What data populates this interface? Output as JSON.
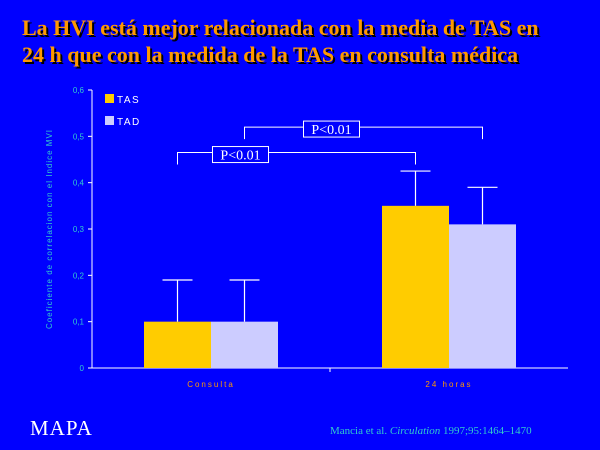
{
  "slide": {
    "title_line1": "La HVI está mejor relacionada con la media de TAS en",
    "title_line2": "24 h que con la medida de la TAS en consulta médica",
    "footer_label": "MAPA",
    "citation_authors": "Mancia et al. ",
    "citation_journal": "Circulation",
    "citation_rest": " 1997;95:1464–1470"
  },
  "colors": {
    "background": "#0000FF",
    "title": "#FF9900",
    "axis_text": "#33CCCC",
    "axis_line": "#FFFFFF",
    "tas": "#FFCC00",
    "tad": "#CCCCFF"
  },
  "chart_data": {
    "type": "bar",
    "categories": [
      "Consulta",
      "24 horas"
    ],
    "series": [
      {
        "name": "TAS",
        "values": [
          0.1,
          0.35
        ],
        "error_upper": [
          0.19,
          0.425
        ]
      },
      {
        "name": "TAD",
        "values": [
          0.1,
          0.31
        ],
        "error_upper": [
          0.19,
          0.39
        ]
      }
    ],
    "ylabel": "Coeficiente de correlacion con el Indice MVI",
    "ylim": [
      0,
      0.6
    ],
    "yticks": [
      "0",
      "0,1",
      "0,2",
      "0,3",
      "0,4",
      "0,5",
      "0,6"
    ],
    "legend_position": "top-left",
    "annotations": [
      {
        "text": "P<0.01",
        "from_series": "TAS",
        "from_category": "Consulta",
        "to_series": "TAS",
        "to_category": "24 horas",
        "level": 0.465
      },
      {
        "text": "P<0.01",
        "from_series": "TAD",
        "from_category": "Consulta",
        "to_series": "TAD",
        "to_category": "24 horas",
        "level": 0.52
      }
    ],
    "grid": false
  }
}
